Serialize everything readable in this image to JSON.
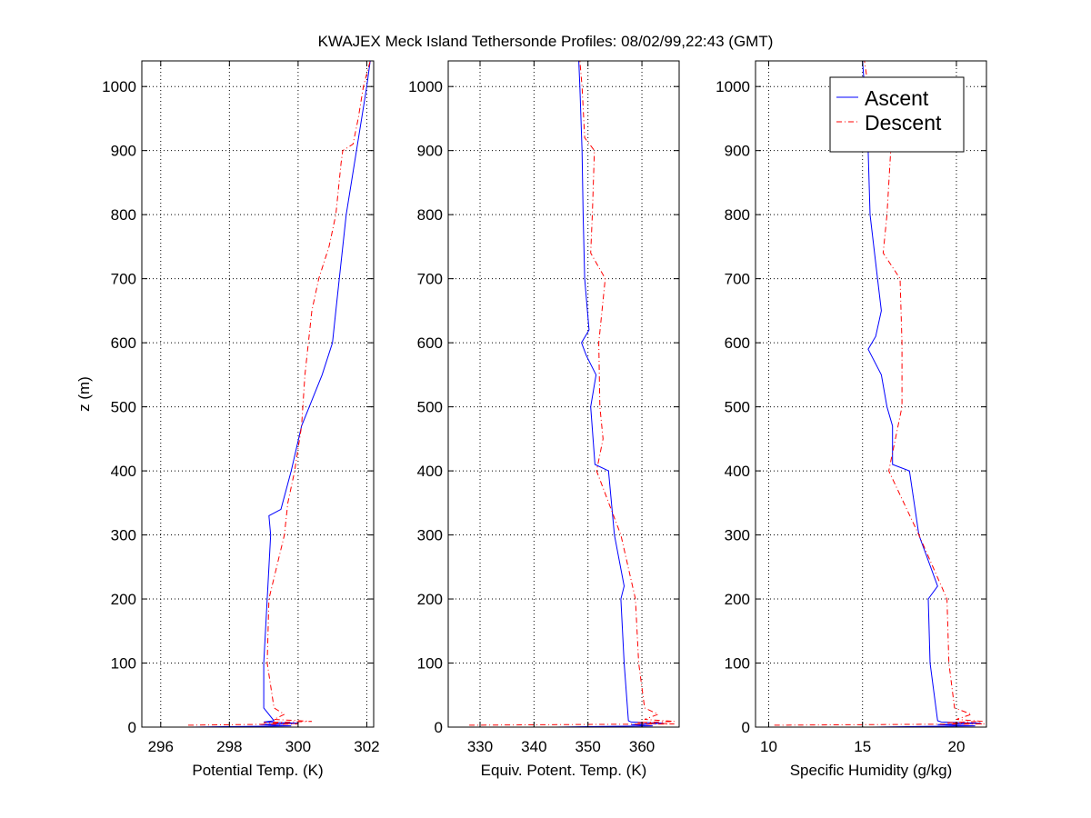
{
  "chart_data": {
    "type": "line",
    "title": "KWAJEX Meck Island Tethersonde Profiles: 08/02/99,22:43 (GMT)",
    "colors": {
      "Ascent": "#0000ff",
      "Descent": "#ff0000"
    },
    "legend": {
      "placement": "top-right",
      "panel": 3,
      "entries": [
        "Ascent",
        "Descent"
      ]
    },
    "grid": true,
    "panels": [
      {
        "xlabel": "Potential Temp. (K)",
        "ylabel": "z (m)",
        "xlim": [
          295.45,
          302.2
        ],
        "ylim": [
          0,
          1040
        ],
        "xticks": [
          296,
          298,
          300,
          302
        ],
        "yticks": [
          0,
          100,
          200,
          300,
          400,
          500,
          600,
          700,
          800,
          900,
          1000
        ],
        "series": [
          {
            "name": "Ascent",
            "style": "solid",
            "z": [
              0,
              2,
              4,
              6,
              8,
              10,
              30,
              100,
              200,
              300,
              330,
              340,
              400,
              470,
              550,
              600,
              650,
              700,
              750,
              800,
              900,
              1000,
              1040
            ],
            "values": [
              296.9,
              299.8,
              298.9,
              300.0,
              299.0,
              299.3,
              299.0,
              299.0,
              299.1,
              299.2,
              299.15,
              299.5,
              299.8,
              300.1,
              300.7,
              301.0,
              301.1,
              301.2,
              301.3,
              301.4,
              301.7,
              302.0,
              302.1
            ]
          },
          {
            "name": "Descent",
            "style": "dashed",
            "z": [
              3,
              5,
              7,
              9,
              12,
              20,
              30,
              100,
              200,
              300,
              350,
              400,
              470,
              550,
              600,
              650,
              700,
              750,
              800,
              880,
              900,
              910,
              950,
              1000,
              1040
            ],
            "values": [
              296.8,
              300.0,
              299.0,
              300.4,
              299.3,
              299.6,
              299.3,
              299.1,
              299.15,
              299.6,
              299.7,
              299.9,
              300.1,
              300.2,
              300.3,
              300.4,
              300.6,
              300.9,
              301.1,
              301.25,
              301.3,
              301.6,
              301.75,
              301.9,
              302.1
            ]
          }
        ]
      },
      {
        "xlabel": "Equiv. Potent. Temp. (K)",
        "ylabel": "",
        "xlim": [
          324.1,
          366.9
        ],
        "ylim": [
          0,
          1040
        ],
        "xticks": [
          330,
          340,
          350,
          360
        ],
        "yticks": [
          0,
          100,
          200,
          300,
          400,
          500,
          600,
          700,
          800,
          900,
          1000
        ],
        "series": [
          {
            "name": "Ascent",
            "style": "solid",
            "z": [
              0,
              2,
              4,
              6,
              8,
              10,
              100,
              200,
              220,
              300,
              400,
              410,
              500,
              550,
              580,
              600,
              620,
              700,
              800,
              900,
              1000,
              1040
            ],
            "values": [
              344,
              362,
              358,
              364,
              358,
              357.5,
              356.7,
              356.1,
              356.7,
              354.9,
              353.8,
              351.3,
              350.5,
              351.5,
              349.7,
              348.8,
              350.2,
              349.4,
              349.1,
              348.9,
              348.5,
              348.3
            ]
          },
          {
            "name": "Descent",
            "style": "dashed",
            "z": [
              3,
              5,
              7,
              9,
              12,
              20,
              30,
              100,
              200,
              300,
              400,
              450,
              500,
              600,
              700,
              740,
              800,
              900,
              920,
              1000,
              1040
            ],
            "values": [
              328,
              366,
              359,
              366,
              360.5,
              363,
              360.5,
              359.4,
              358.8,
              356.1,
              351.6,
              352.8,
              352.2,
              352.0,
              353.2,
              350.5,
              350.8,
              351.2,
              349.4,
              348.9,
              348.5
            ]
          }
        ]
      },
      {
        "xlabel": "Specific Humidity (g/kg)",
        "ylabel": "",
        "xlim": [
          9.3,
          21.6
        ],
        "ylim": [
          0,
          1040
        ],
        "xticks": [
          10,
          15,
          20
        ],
        "yticks": [
          0,
          100,
          200,
          300,
          400,
          500,
          600,
          700,
          800,
          900,
          1000
        ],
        "series": [
          {
            "name": "Ascent",
            "style": "solid",
            "z": [
              0,
              2,
              4,
              6,
              8,
              10,
              100,
              200,
              220,
              300,
              400,
              410,
              470,
              500,
              550,
              590,
              610,
              650,
              700,
              800,
              900,
              1000,
              1040
            ],
            "values": [
              15.5,
              21.0,
              19.0,
              21.3,
              19.2,
              19.0,
              18.6,
              18.5,
              19.0,
              18.0,
              17.5,
              16.6,
              16.6,
              16.3,
              16.0,
              15.3,
              15.7,
              16.0,
              15.8,
              15.4,
              15.3,
              15.1,
              15.0
            ]
          },
          {
            "name": "Descent",
            "style": "dashed",
            "z": [
              3,
              5,
              7,
              9,
              12,
              20,
              30,
              100,
              200,
              300,
              400,
              500,
              600,
              700,
              740,
              800,
              900,
              920,
              1000,
              1040
            ],
            "values": [
              10.3,
              21.5,
              19.5,
              21.4,
              20.0,
              20.8,
              19.9,
              19.6,
              19.5,
              18.0,
              16.4,
              17.1,
              17.1,
              17.0,
              16.1,
              16.3,
              16.5,
              15.7,
              15.3,
              15.1
            ]
          }
        ]
      }
    ]
  }
}
